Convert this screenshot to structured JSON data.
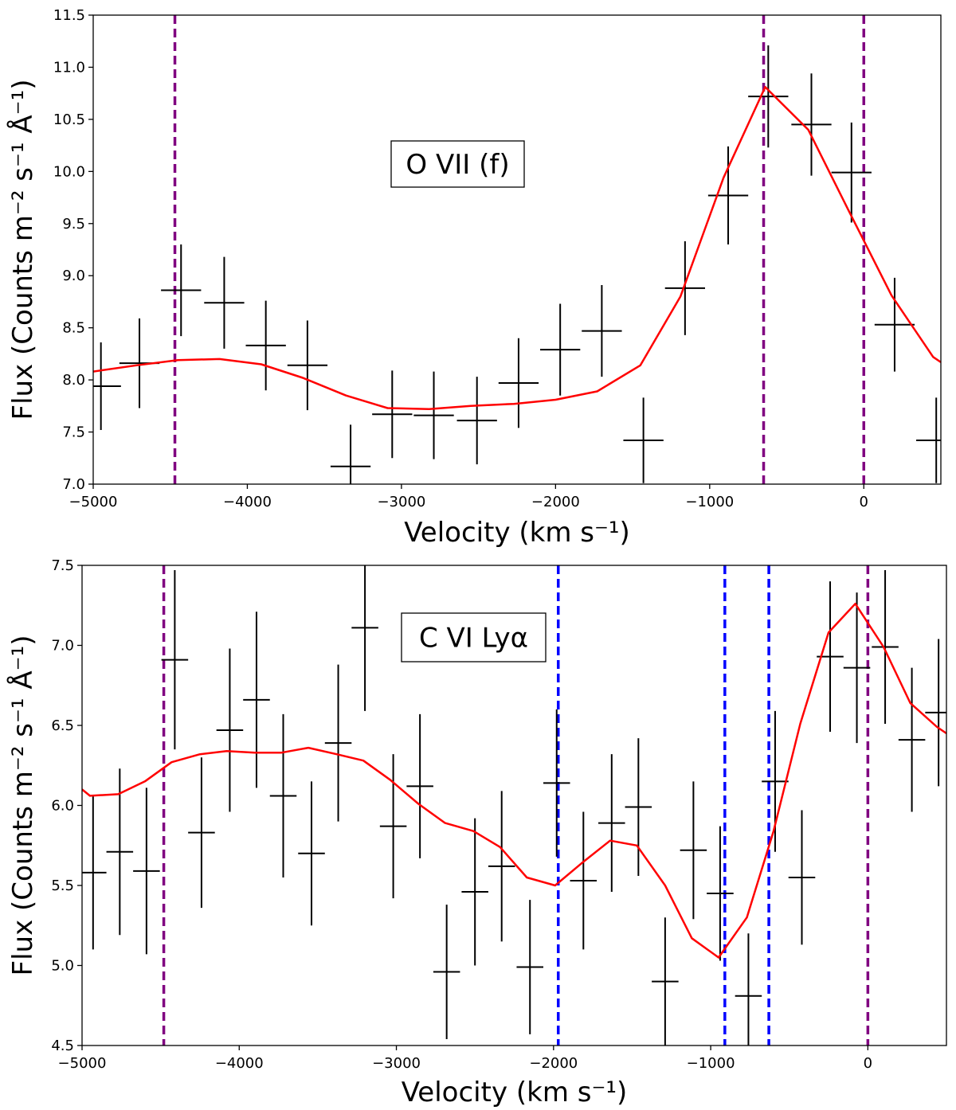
{
  "chart_data": [
    {
      "type": "line",
      "annotation": "O VII (f)",
      "xlabel": "Velocity (km s⁻¹)",
      "ylabel": "Flux (Counts m⁻² s⁻¹ Å⁻¹)",
      "xlim": [
        -5000,
        500
      ],
      "ylim": [
        7.0,
        11.5
      ],
      "xticks": [
        -5000,
        -4000,
        -3000,
        -2000,
        -1000,
        0
      ],
      "xtick_labels": [
        "−5000",
        "−4000",
        "−3000",
        "−2000",
        "−1000",
        "0"
      ],
      "yticks": [
        7.0,
        7.5,
        8.0,
        8.5,
        9.0,
        9.5,
        10.0,
        10.5,
        11.0,
        11.5
      ],
      "ytick_labels": [
        "7.0",
        "7.5",
        "8.0",
        "8.5",
        "9.0",
        "9.5",
        "10.0",
        "10.5",
        "11.0",
        "11.5"
      ],
      "grid": false,
      "colors": {
        "model": "#ff0000",
        "data": "#000000",
        "purple": "#800080",
        "blue": "#0000ff"
      },
      "vlines": [
        {
          "x": -4470,
          "color": "purple"
        },
        {
          "x": -650,
          "color": "purple"
        },
        {
          "x": 0,
          "color": "purple"
        }
      ],
      "data_points": [
        {
          "x": -4950,
          "xerr": 130,
          "y": 7.94,
          "yerr": 0.42
        },
        {
          "x": -4700,
          "xerr": 130,
          "y": 8.16,
          "yerr": 0.43
        },
        {
          "x": -4430,
          "xerr": 130,
          "y": 8.86,
          "yerr": 0.44
        },
        {
          "x": -4150,
          "xerr": 130,
          "y": 8.74,
          "yerr": 0.44
        },
        {
          "x": -3880,
          "xerr": 130,
          "y": 8.33,
          "yerr": 0.43
        },
        {
          "x": -3610,
          "xerr": 130,
          "y": 8.14,
          "yerr": 0.43
        },
        {
          "x": -3330,
          "xerr": 130,
          "y": 7.17,
          "yerr": 0.4
        },
        {
          "x": -3060,
          "xerr": 130,
          "y": 7.67,
          "yerr": 0.42
        },
        {
          "x": -2790,
          "xerr": 130,
          "y": 7.66,
          "yerr": 0.42
        },
        {
          "x": -2510,
          "xerr": 130,
          "y": 7.61,
          "yerr": 0.42
        },
        {
          "x": -2240,
          "xerr": 130,
          "y": 7.97,
          "yerr": 0.43
        },
        {
          "x": -1970,
          "xerr": 130,
          "y": 8.29,
          "yerr": 0.44
        },
        {
          "x": -1700,
          "xerr": 130,
          "y": 8.47,
          "yerr": 0.44
        },
        {
          "x": -1430,
          "xerr": 130,
          "y": 7.42,
          "yerr": 0.41
        },
        {
          "x": -1160,
          "xerr": 130,
          "y": 8.88,
          "yerr": 0.45
        },
        {
          "x": -880,
          "xerr": 130,
          "y": 9.77,
          "yerr": 0.47
        },
        {
          "x": -620,
          "xerr": 130,
          "y": 10.72,
          "yerr": 0.49
        },
        {
          "x": -340,
          "xerr": 130,
          "y": 10.45,
          "yerr": 0.49
        },
        {
          "x": -80,
          "xerr": 130,
          "y": 9.99,
          "yerr": 0.48
        },
        {
          "x": 200,
          "xerr": 130,
          "y": 8.53,
          "yerr": 0.45
        },
        {
          "x": 470,
          "xerr": 130,
          "y": 7.42,
          "yerr": 0.41
        }
      ],
      "model": {
        "x": [
          -5000,
          -4720,
          -4450,
          -4180,
          -3910,
          -3640,
          -3360,
          -3090,
          -2820,
          -2550,
          -2270,
          -2000,
          -1730,
          -1450,
          -1190,
          -910,
          -640,
          -360,
          -100,
          180,
          450,
          500
        ],
        "y": [
          8.08,
          8.14,
          8.19,
          8.2,
          8.15,
          8.02,
          7.85,
          7.73,
          7.72,
          7.75,
          7.77,
          7.81,
          7.89,
          8.14,
          8.8,
          9.94,
          10.81,
          10.4,
          9.63,
          8.81,
          8.22,
          8.17
        ]
      }
    },
    {
      "type": "line",
      "annotation": "C VI Lyα",
      "xlabel": "Velocity (km s⁻¹)",
      "ylabel": "Flux (Counts m⁻² s⁻¹ Å⁻¹)",
      "xlim": [
        -5000,
        500
      ],
      "ylim": [
        4.5,
        7.5
      ],
      "xticks": [
        -5000,
        -4000,
        -3000,
        -2000,
        -1000,
        0
      ],
      "xtick_labels": [
        "−5000",
        "−4000",
        "−3000",
        "−2000",
        "−1000",
        "0"
      ],
      "yticks": [
        4.5,
        5.0,
        5.5,
        6.0,
        6.5,
        7.0,
        7.5
      ],
      "ytick_labels": [
        "4.5",
        "5.0",
        "5.5",
        "6.0",
        "6.5",
        "7.0",
        "7.5"
      ],
      "grid": false,
      "colors": {
        "model": "#ff0000",
        "data": "#000000",
        "purple": "#800080",
        "blue": "#0000ff"
      },
      "vlines": [
        {
          "x": -4480,
          "color": "purple"
        },
        {
          "x": -1970,
          "color": "blue"
        },
        {
          "x": -910,
          "color": "blue"
        },
        {
          "x": -630,
          "color": "blue"
        },
        {
          "x": 0,
          "color": "purple"
        }
      ],
      "data_points": [
        {
          "x": -4930,
          "xerr": 85,
          "y": 5.58,
          "yerr": 0.48
        },
        {
          "x": -4760,
          "xerr": 85,
          "y": 5.71,
          "yerr": 0.52
        },
        {
          "x": -4590,
          "xerr": 85,
          "y": 5.59,
          "yerr": 0.52
        },
        {
          "x": -4410,
          "xerr": 85,
          "y": 6.91,
          "yerr": 0.56
        },
        {
          "x": -4240,
          "xerr": 85,
          "y": 5.83,
          "yerr": 0.47
        },
        {
          "x": -4060,
          "xerr": 85,
          "y": 6.47,
          "yerr": 0.51
        },
        {
          "x": -3890,
          "xerr": 85,
          "y": 6.66,
          "yerr": 0.55
        },
        {
          "x": -3720,
          "xerr": 85,
          "y": 6.06,
          "yerr": 0.51
        },
        {
          "x": -3540,
          "xerr": 85,
          "y": 5.7,
          "yerr": 0.45
        },
        {
          "x": -3370,
          "xerr": 85,
          "y": 6.39,
          "yerr": 0.49
        },
        {
          "x": -3200,
          "xerr": 85,
          "y": 7.11,
          "yerr": 0.52
        },
        {
          "x": -3020,
          "xerr": 85,
          "y": 5.87,
          "yerr": 0.45
        },
        {
          "x": -2850,
          "xerr": 85,
          "y": 6.12,
          "yerr": 0.45
        },
        {
          "x": -2680,
          "xerr": 85,
          "y": 4.96,
          "yerr": 0.42
        },
        {
          "x": -2500,
          "xerr": 85,
          "y": 5.46,
          "yerr": 0.46
        },
        {
          "x": -2330,
          "xerr": 85,
          "y": 5.62,
          "yerr": 0.47
        },
        {
          "x": -2150,
          "xerr": 85,
          "y": 4.99,
          "yerr": 0.42
        },
        {
          "x": -1980,
          "xerr": 85,
          "y": 6.14,
          "yerr": 0.46
        },
        {
          "x": -1810,
          "xerr": 85,
          "y": 5.53,
          "yerr": 0.43
        },
        {
          "x": -1630,
          "xerr": 85,
          "y": 5.89,
          "yerr": 0.43
        },
        {
          "x": -1460,
          "xerr": 85,
          "y": 5.99,
          "yerr": 0.43
        },
        {
          "x": -1290,
          "xerr": 85,
          "y": 4.9,
          "yerr": 0.4
        },
        {
          "x": -1110,
          "xerr": 85,
          "y": 5.72,
          "yerr": 0.43
        },
        {
          "x": -940,
          "xerr": 85,
          "y": 5.45,
          "yerr": 0.42
        },
        {
          "x": -760,
          "xerr": 85,
          "y": 4.81,
          "yerr": 0.39
        },
        {
          "x": -590,
          "xerr": 85,
          "y": 6.15,
          "yerr": 0.44
        },
        {
          "x": -420,
          "xerr": 85,
          "y": 5.55,
          "yerr": 0.42
        },
        {
          "x": -240,
          "xerr": 85,
          "y": 6.93,
          "yerr": 0.47
        },
        {
          "x": -70,
          "xerr": 85,
          "y": 6.86,
          "yerr": 0.47
        },
        {
          "x": 110,
          "xerr": 85,
          "y": 6.99,
          "yerr": 0.48
        },
        {
          "x": 280,
          "xerr": 85,
          "y": 6.41,
          "yerr": 0.45
        },
        {
          "x": 450,
          "xerr": 85,
          "y": 6.58,
          "yerr": 0.46
        }
      ],
      "model": {
        "x": [
          -5000,
          -4950,
          -4770,
          -4600,
          -4430,
          -4250,
          -4080,
          -3900,
          -3730,
          -3560,
          -3380,
          -3210,
          -3040,
          -2860,
          -2690,
          -2510,
          -2340,
          -2170,
          -1990,
          -1820,
          -1640,
          -1470,
          -1290,
          -1120,
          -950,
          -770,
          -600,
          -430,
          -250,
          -80,
          100,
          270,
          440,
          500
        ],
        "y": [
          6.1,
          6.06,
          6.07,
          6.15,
          6.27,
          6.32,
          6.34,
          6.33,
          6.33,
          6.36,
          6.32,
          6.28,
          6.16,
          6.01,
          5.89,
          5.84,
          5.74,
          5.55,
          5.5,
          5.64,
          5.78,
          5.75,
          5.5,
          5.17,
          5.05,
          5.3,
          5.84,
          6.51,
          7.08,
          7.26,
          6.99,
          6.64,
          6.49,
          6.45
        ]
      }
    }
  ]
}
